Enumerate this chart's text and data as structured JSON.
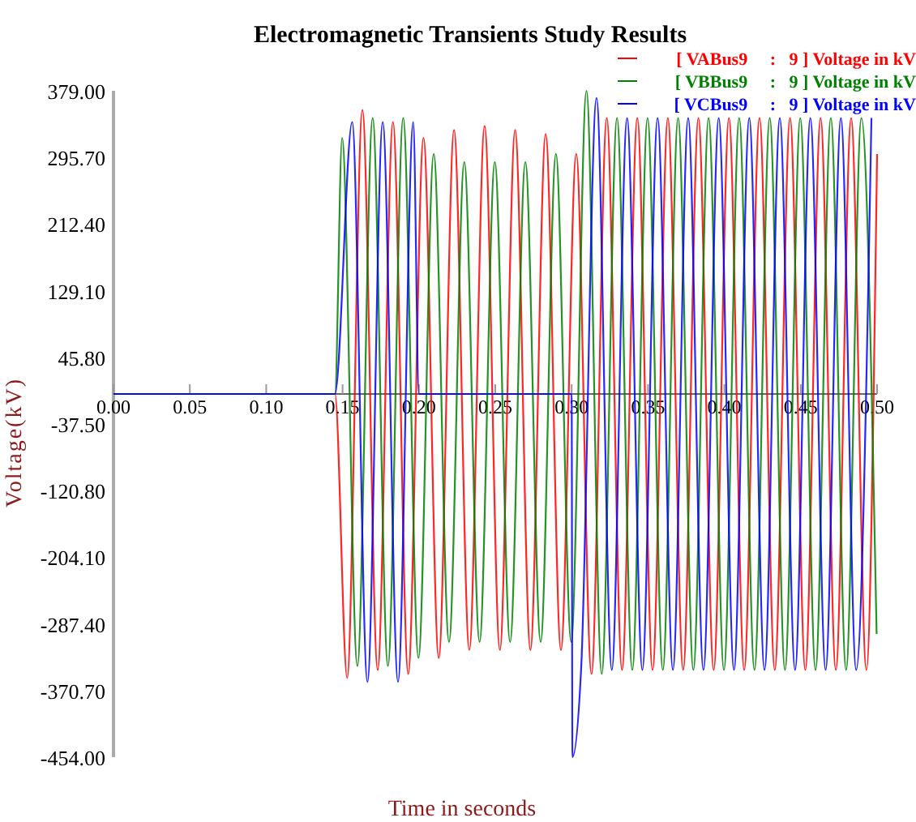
{
  "chart_data": {
    "type": "line",
    "title": "Electromagnetic Transients Study Results",
    "xlabel": "Time in seconds",
    "ylabel": "Voltage(kV)",
    "xlim": [
      0,
      0.5
    ],
    "ylim": [
      -454,
      379
    ],
    "xticks": [
      {
        "value": 0,
        "label": "0.00"
      },
      {
        "value": 0.05,
        "label": "0.05"
      },
      {
        "value": 0.1,
        "label": "0.10"
      },
      {
        "value": 0.15,
        "label": "0.15"
      },
      {
        "value": 0.2,
        "label": "0.20"
      },
      {
        "value": 0.25,
        "label": "0.25"
      },
      {
        "value": 0.3,
        "label": "0.30"
      },
      {
        "value": 0.35,
        "label": "0.35"
      },
      {
        "value": 0.4,
        "label": "0.40"
      },
      {
        "value": 0.45,
        "label": "0.45"
      },
      {
        "value": 0.5,
        "label": "0.50"
      }
    ],
    "yticks": [
      {
        "value": 379,
        "label": "379.00"
      },
      {
        "value": 295.7,
        "label": "295.70"
      },
      {
        "value": 212.4,
        "label": "212.40"
      },
      {
        "value": 129.1,
        "label": "129.10"
      },
      {
        "value": 45.8,
        "label": "45.80"
      },
      {
        "value": -37.5,
        "label": "-37.50"
      },
      {
        "value": -120.8,
        "label": "-120.80"
      },
      {
        "value": -204.1,
        "label": "-204.10"
      },
      {
        "value": -287.4,
        "label": "-287.40"
      },
      {
        "value": -370.7,
        "label": "-370.70"
      },
      {
        "value": -454,
        "label": "-454.00"
      }
    ],
    "grid": false,
    "legend": "top right",
    "marker": "none",
    "line_style": "solid",
    "series": [
      {
        "name": "[ VABus9     :   9 ] Voltage in kV",
        "color": "#ff0000",
        "x": [
          0,
          0.145,
          0.153,
          0.163,
          0.173,
          0.183,
          0.193,
          0.203,
          0.213,
          0.223,
          0.233,
          0.243,
          0.253,
          0.263,
          0.273,
          0.283,
          0.293,
          0.303,
          0.313,
          0.323,
          0.333,
          0.343,
          0.353,
          0.363,
          0.373,
          0.383,
          0.393,
          0.403,
          0.413,
          0.423,
          0.433,
          0.443,
          0.453,
          0.463,
          0.473,
          0.483,
          0.493,
          0.5
        ],
        "values": [
          0,
          0,
          -355,
          355,
          -345,
          340,
          -350,
          320,
          -330,
          330,
          -320,
          335,
          -320,
          330,
          -320,
          325,
          -320,
          300,
          -350,
          345,
          -345,
          345,
          -345,
          345,
          -345,
          345,
          -345,
          345,
          -345,
          345,
          -345,
          345,
          -345,
          345,
          -345,
          345,
          -345,
          300
        ]
      },
      {
        "name": "[ VBBus9     :   9 ] Voltage in kV",
        "color": "#008000",
        "x": [
          0,
          0.145,
          0.1497,
          0.1597,
          0.1697,
          0.1797,
          0.1897,
          0.1997,
          0.2097,
          0.2197,
          0.2297,
          0.2397,
          0.2497,
          0.2597,
          0.2697,
          0.2797,
          0.2897,
          0.2997,
          0.3097,
          0.3197,
          0.3297,
          0.3397,
          0.3497,
          0.3597,
          0.3697,
          0.3797,
          0.3897,
          0.3997,
          0.4097,
          0.4197,
          0.4297,
          0.4397,
          0.4497,
          0.4597,
          0.4697,
          0.4797,
          0.4897,
          0.4997
        ],
        "values": [
          0,
          0,
          320,
          -340,
          345,
          -340,
          345,
          -330,
          300,
          -310,
          290,
          -310,
          290,
          -310,
          290,
          -310,
          300,
          -310,
          379,
          -350,
          345,
          -345,
          345,
          -345,
          345,
          -345,
          345,
          -345,
          345,
          -345,
          345,
          -345,
          345,
          -345,
          345,
          -345,
          345,
          -300
        ]
      },
      {
        "name": "[ VCBus9     :   9 ] Voltage in kV",
        "color": "#0000ff",
        "x": [
          0,
          0.145,
          0.1563,
          0.1663,
          0.1763,
          0.1863,
          0.1963,
          0.2,
          0.3,
          0.3005,
          0.3063,
          0.3163,
          0.3263,
          0.3363,
          0.3463,
          0.3563,
          0.3663,
          0.3763,
          0.3863,
          0.3963,
          0.4063,
          0.4163,
          0.4263,
          0.4363,
          0.4463,
          0.4563,
          0.4663,
          0.4763,
          0.4863,
          0.4963
        ],
        "values": [
          0,
          0,
          340,
          -360,
          340,
          -360,
          340,
          0,
          0,
          -454,
          -340,
          370,
          -345,
          345,
          -345,
          345,
          -345,
          345,
          -345,
          345,
          -345,
          345,
          -345,
          345,
          -345,
          345,
          -345,
          345,
          -345,
          345
        ]
      }
    ]
  }
}
